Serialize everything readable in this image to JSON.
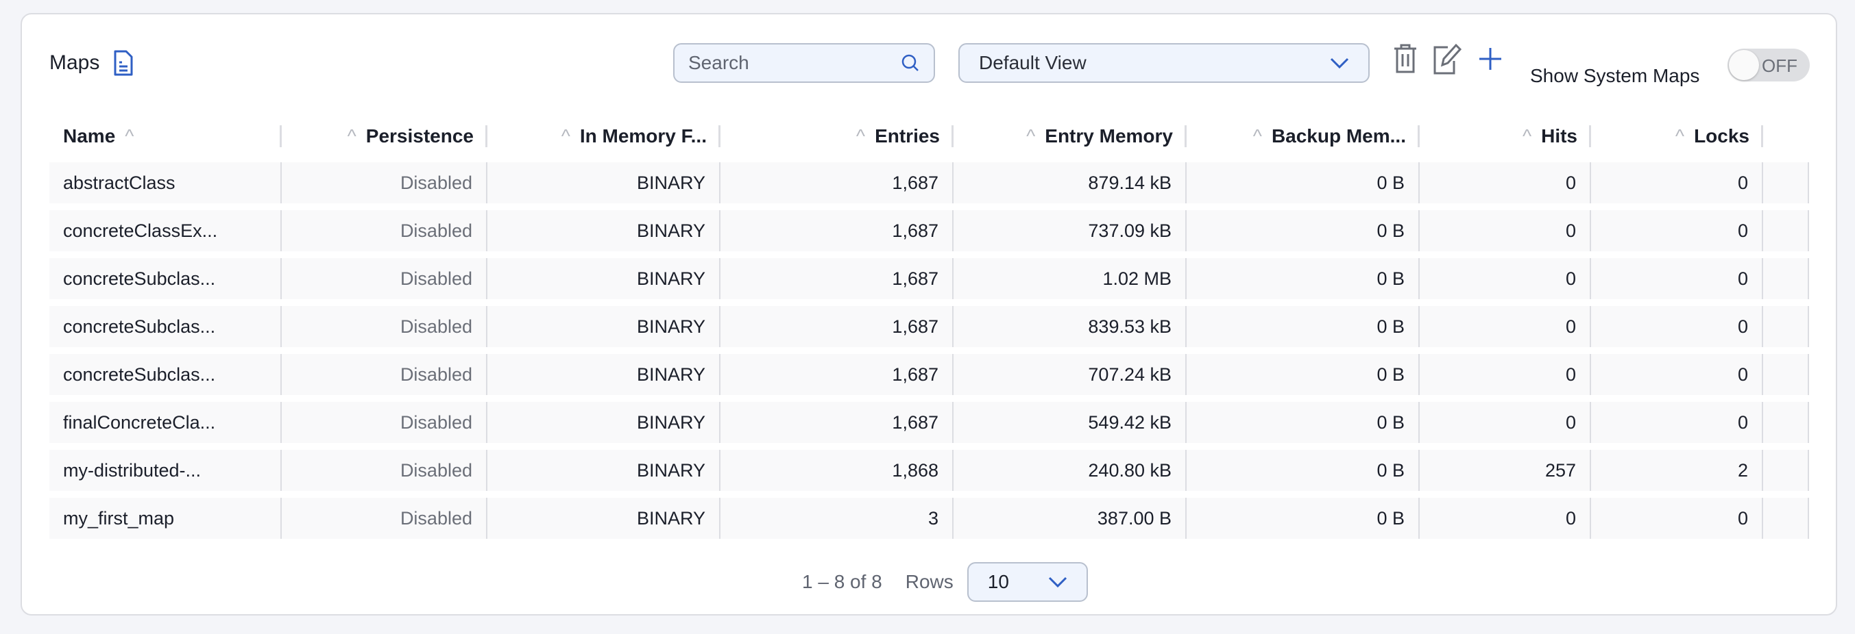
{
  "title": "Maps",
  "search": {
    "placeholder": "Search"
  },
  "view": {
    "selected": "Default View"
  },
  "show_system_maps": {
    "label": "Show System Maps",
    "state": "OFF"
  },
  "columns": [
    "Name",
    "Persistence",
    "In Memory F...",
    "Entries",
    "Entry Memory",
    "Backup Mem...",
    "Hits",
    "Locks"
  ],
  "rows": [
    [
      "abstractClass",
      "Disabled",
      "BINARY",
      "1,687",
      "879.14 kB",
      "0 B",
      "0",
      "0"
    ],
    [
      "concreteClassEx...",
      "Disabled",
      "BINARY",
      "1,687",
      "737.09 kB",
      "0 B",
      "0",
      "0"
    ],
    [
      "concreteSubclas...",
      "Disabled",
      "BINARY",
      "1,687",
      "1.02 MB",
      "0 B",
      "0",
      "0"
    ],
    [
      "concreteSubclas...",
      "Disabled",
      "BINARY",
      "1,687",
      "839.53 kB",
      "0 B",
      "0",
      "0"
    ],
    [
      "concreteSubclas...",
      "Disabled",
      "BINARY",
      "1,687",
      "707.24 kB",
      "0 B",
      "0",
      "0"
    ],
    [
      "finalConcreteCla...",
      "Disabled",
      "BINARY",
      "1,687",
      "549.42 kB",
      "0 B",
      "0",
      "0"
    ],
    [
      "my-distributed-...",
      "Disabled",
      "BINARY",
      "1,868",
      "240.80 kB",
      "0 B",
      "257",
      "2"
    ],
    [
      "my_first_map",
      "Disabled",
      "BINARY",
      "3",
      "387.00 B",
      "0 B",
      "0",
      "0"
    ]
  ],
  "pagination": {
    "range": "1 – 8 of 8",
    "rows_label": "Rows",
    "rows_value": "10"
  },
  "colors": {
    "accent": "#2f5fc4",
    "input_bg": "#eff4fd"
  }
}
